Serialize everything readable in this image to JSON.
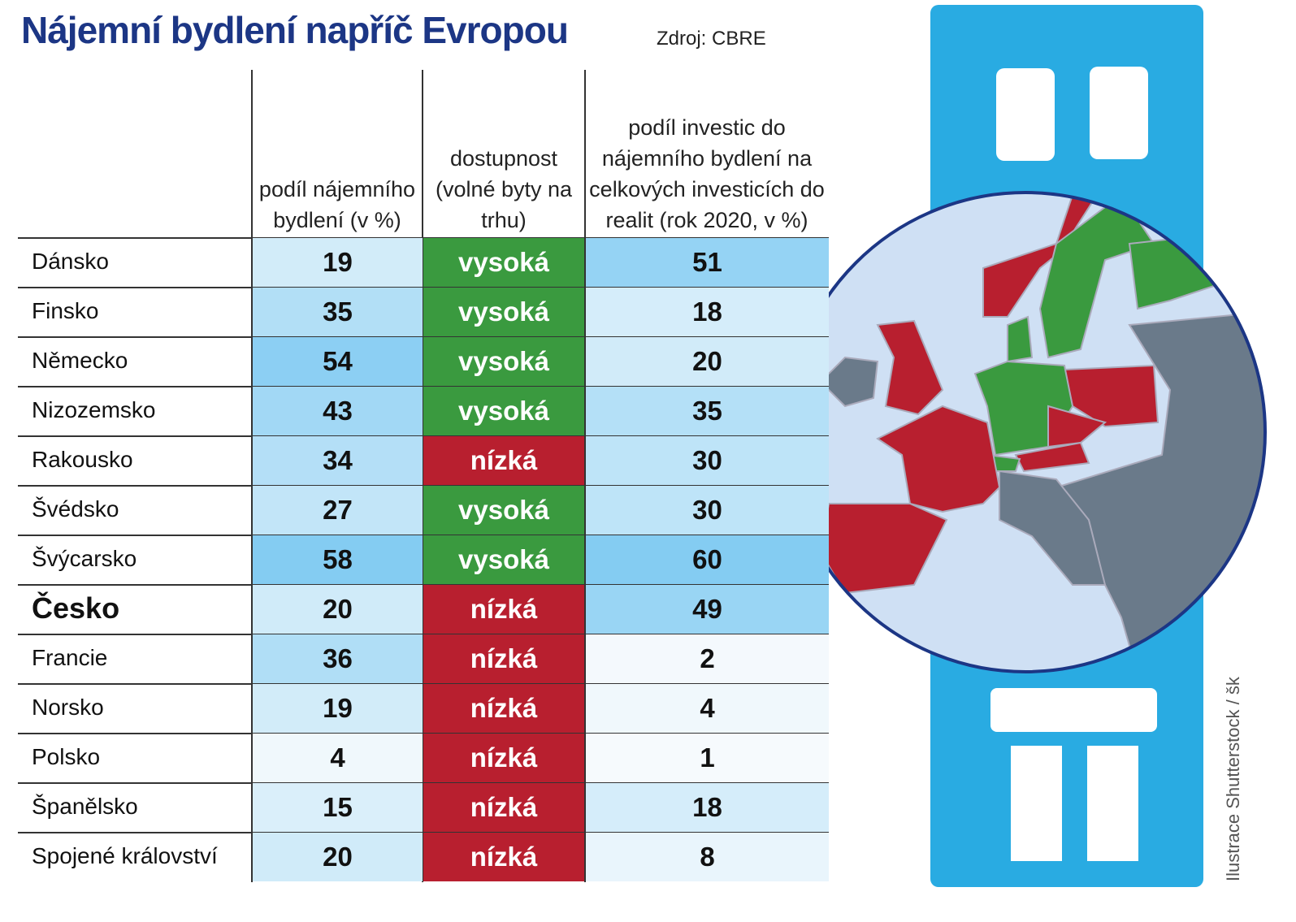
{
  "header": {
    "title": "Nájemní bydlení napříč Evropou",
    "source": "Zdroj: CBRE"
  },
  "table": {
    "columns": [
      "podíl nájemního bydlení (v %)",
      "dostupnost (volné byty na trhu)",
      "podíl investic do nájemního bydlení na celkových investicích do realit (rok 2020, v %)"
    ],
    "rows": [
      {
        "country": "Dánsko",
        "rental_share": 19,
        "availability": "vysoká",
        "availability_color": "#3a9a3f",
        "investment_share": 51
      },
      {
        "country": "Finsko",
        "rental_share": 35,
        "availability": "vysoká",
        "availability_color": "#3a9a3f",
        "investment_share": 18
      },
      {
        "country": "Německo",
        "rental_share": 54,
        "availability": "vysoká",
        "availability_color": "#3a9a3f",
        "investment_share": 20
      },
      {
        "country": "Nizozemsko",
        "rental_share": 43,
        "availability": "vysoká",
        "availability_color": "#3a9a3f",
        "investment_share": 35
      },
      {
        "country": "Rakousko",
        "rental_share": 34,
        "availability": "nízká",
        "availability_color": "#b81f2f",
        "investment_share": 30
      },
      {
        "country": "Švédsko",
        "rental_share": 27,
        "availability": "vysoká",
        "availability_color": "#3a9a3f",
        "investment_share": 30
      },
      {
        "country": "Švýcarsko",
        "rental_share": 58,
        "availability": "vysoká",
        "availability_color": "#3a9a3f",
        "investment_share": 60
      },
      {
        "country": "Česko",
        "rental_share": 20,
        "availability": "nízká",
        "availability_color": "#b81f2f",
        "investment_share": 49
      },
      {
        "country": "Francie",
        "rental_share": 36,
        "availability": "nízká",
        "availability_color": "#b81f2f",
        "investment_share": 2
      },
      {
        "country": "Norsko",
        "rental_share": 19,
        "availability": "nízká",
        "availability_color": "#b81f2f",
        "investment_share": 4
      },
      {
        "country": "Polsko",
        "rental_share": 4,
        "availability": "nízká",
        "availability_color": "#b81f2f",
        "investment_share": 1
      },
      {
        "country": "Španělsko",
        "rental_share": 15,
        "availability": "nízká",
        "availability_color": "#b81f2f",
        "investment_share": 18
      },
      {
        "country": "Spojené království",
        "rental_share": 20,
        "availability": "nízká",
        "availability_color": "#b81f2f",
        "investment_share": 8
      }
    ]
  },
  "credit": "Ilustrace Shutterstock / šk"
}
